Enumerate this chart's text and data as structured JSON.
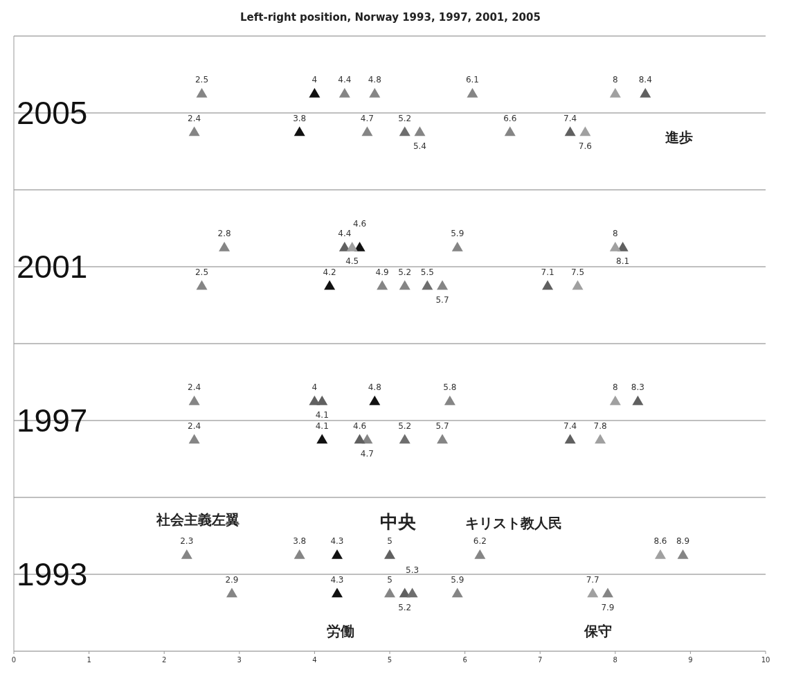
{
  "chart_data": {
    "type": "scatter",
    "title": "Left-right position, Norway 1993, 1997, 2001, 2005",
    "orientation": "horizontal",
    "categories": [
      "2005",
      "2001",
      "1997",
      "1993"
    ],
    "xlim": [
      0,
      10
    ],
    "xticks": [
      0,
      1,
      2,
      3,
      4,
      5,
      6,
      7,
      8,
      9,
      10
    ],
    "grid": "y",
    "marker": "triangle",
    "data_labels": true,
    "series": [
      {
        "color": "#858585",
        "values": [
          2.5,
          2.8,
          2.4,
          2.3
        ]
      },
      {
        "color": "#858585",
        "values": [
          2.4,
          2.5,
          2.4,
          2.9
        ]
      },
      {
        "color": "#858585",
        "values": [
          4.4,
          5.9,
          5.8,
          3.8
        ]
      },
      {
        "color": "#858585",
        "values": [
          4.7,
          4.9,
          4.7,
          5
        ]
      },
      {
        "color": "#858585",
        "values": [
          4.8,
          null,
          null,
          6.2
        ]
      },
      {
        "color": "#858585",
        "values": [
          5.4,
          5.2,
          5.7,
          5.9
        ]
      },
      {
        "color": "#858585",
        "values": [
          6.1,
          null,
          null,
          8.9
        ]
      },
      {
        "color": "#858585",
        "values": [
          6.6,
          5.7,
          null,
          7.9
        ]
      },
      {
        "color": "#606060",
        "values": [
          8.4,
          4.4,
          4,
          5
        ]
      },
      {
        "color": "#606060",
        "values": [
          7.4,
          7.1,
          4.6,
          5.2
        ]
      },
      {
        "color": "#606060",
        "values": [
          null,
          8.1,
          4.1,
          null
        ]
      },
      {
        "color": "#606060",
        "values": [
          null,
          null,
          7.4,
          null
        ]
      },
      {
        "color": "#606060",
        "values": [
          null,
          null,
          8.3,
          null
        ]
      },
      {
        "color": "#6e6e6e",
        "values": [
          5.2,
          5.5,
          5.2,
          5.3
        ]
      },
      {
        "color": "#111111",
        "values": [
          4,
          4.6,
          4.8,
          4.3
        ]
      },
      {
        "color": "#111111",
        "values": [
          3.8,
          4.2,
          4.1,
          4.3
        ]
      },
      {
        "color": "#a0a0a0",
        "values": [
          8,
          4.5,
          8,
          8.6
        ]
      },
      {
        "color": "#a0a0a0",
        "values": [
          7.6,
          7.5,
          7.8,
          7.7
        ]
      },
      {
        "color": "#a0a0a0",
        "values": [
          null,
          8,
          null,
          null
        ]
      }
    ],
    "annotations": [
      "社会主義左翼",
      "中央",
      "キリスト教人民",
      "労働",
      "保守",
      "進歩"
    ]
  }
}
